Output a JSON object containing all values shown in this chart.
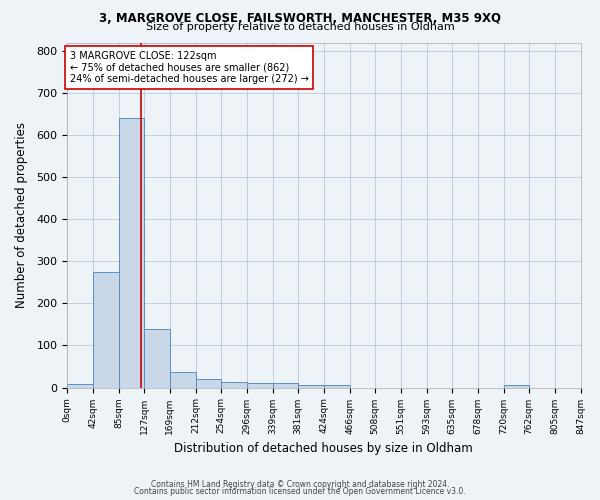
{
  "title1": "3, MARGROVE CLOSE, FAILSWORTH, MANCHESTER, M35 9XQ",
  "title2": "Size of property relative to detached houses in Oldham",
  "xlabel": "Distribution of detached houses by size in Oldham",
  "ylabel": "Number of detached properties",
  "footnote1": "Contains HM Land Registry data © Crown copyright and database right 2024.",
  "footnote2": "Contains public sector information licensed under the Open Government Licence v3.0.",
  "bin_edges": [
    0,
    42,
    85,
    127,
    169,
    212,
    254,
    296,
    339,
    381,
    424,
    466,
    508,
    551,
    593,
    635,
    678,
    720,
    762,
    805,
    847
  ],
  "bar_heights": [
    8,
    275,
    640,
    140,
    37,
    20,
    13,
    11,
    10,
    6,
    6,
    0,
    0,
    0,
    0,
    0,
    0,
    6,
    0,
    0
  ],
  "bar_color": "#c8d8e8",
  "bar_edge_color": "#5a8fc0",
  "grid_color": "#c0cfe0",
  "background_color": "#eef3f8",
  "vline_x": 122,
  "vline_color": "#cc0000",
  "annotation_text": "3 MARGROVE CLOSE: 122sqm\n← 75% of detached houses are smaller (862)\n24% of semi-detached houses are larger (272) →",
  "annotation_box_color": "#ffffff",
  "annotation_box_edge": "#cc0000",
  "ylim": [
    0,
    820
  ],
  "yticks": [
    0,
    100,
    200,
    300,
    400,
    500,
    600,
    700,
    800
  ],
  "tick_labels": [
    "0sqm",
    "42sqm",
    "85sqm",
    "127sqm",
    "169sqm",
    "212sqm",
    "254sqm",
    "296sqm",
    "339sqm",
    "381sqm",
    "424sqm",
    "466sqm",
    "508sqm",
    "551sqm",
    "593sqm",
    "635sqm",
    "678sqm",
    "720sqm",
    "762sqm",
    "805sqm",
    "847sqm"
  ]
}
